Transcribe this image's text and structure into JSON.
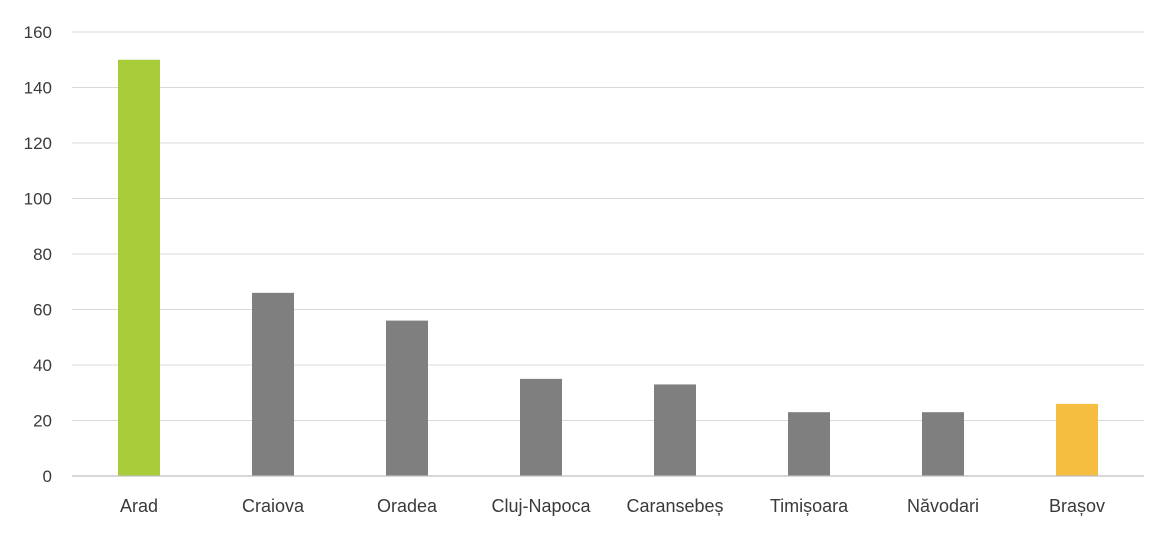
{
  "chart_data": {
    "type": "bar",
    "categories": [
      "Arad",
      "Craiova",
      "Oradea",
      "Cluj-Napoca",
      "Caransebeș",
      "Timișoara",
      "Năvodari",
      "Brașov"
    ],
    "values": [
      150,
      66,
      56,
      35,
      33,
      23,
      23,
      26
    ],
    "colors": [
      "#a8cc3a",
      "#7f7f7f",
      "#7f7f7f",
      "#7f7f7f",
      "#7f7f7f",
      "#7f7f7f",
      "#7f7f7f",
      "#f5be41"
    ],
    "ylim": [
      0,
      160
    ],
    "yticks": [
      0,
      20,
      40,
      60,
      80,
      100,
      120,
      140,
      160
    ],
    "grid": true,
    "legend": "none"
  }
}
